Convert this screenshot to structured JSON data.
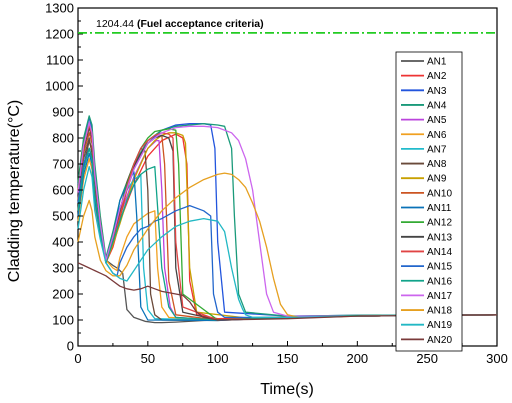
{
  "chart_data": {
    "type": "line",
    "xlabel": "Time(s)",
    "ylabel": "Cladding temperature(°C)",
    "xlim": [
      0,
      300
    ],
    "ylim": [
      0,
      1300
    ],
    "xticks": [
      "0",
      "50",
      "100",
      "150",
      "200",
      "250",
      "300"
    ],
    "yticks": [
      "0",
      "100",
      "200",
      "300",
      "400",
      "500",
      "600",
      "700",
      "800",
      "900",
      "1000",
      "1100",
      "1200",
      "1300"
    ],
    "grid": false,
    "legend_position": "right",
    "reference_line": {
      "value": 1204.44,
      "value_label": "1204.44",
      "label": "(Fuel acceptance criteria)",
      "color": "#22cc22",
      "style": "dash-dot"
    },
    "series": [
      {
        "name": "AN1",
        "color": "#555555",
        "x": [
          0,
          4,
          8,
          10,
          12,
          16,
          20,
          25,
          28,
          32,
          35,
          40,
          48,
          55,
          60,
          70,
          90,
          120,
          160,
          200,
          250,
          300
        ],
        "y": [
          560,
          720,
          800,
          740,
          600,
          430,
          330,
          310,
          300,
          280,
          140,
          110,
          95,
          90,
          90,
          92,
          98,
          105,
          112,
          115,
          118,
          120
        ]
      },
      {
        "name": "AN2",
        "color": "#ee3333",
        "x": [
          0,
          4,
          8,
          10,
          12,
          16,
          20,
          25,
          30,
          40,
          50,
          60,
          70,
          75,
          78,
          80,
          85,
          100,
          150,
          200,
          300
        ],
        "y": [
          600,
          760,
          840,
          800,
          640,
          470,
          320,
          380,
          480,
          620,
          730,
          790,
          815,
          800,
          700,
          250,
          120,
          105,
          110,
          115,
          120
        ]
      },
      {
        "name": "AN3",
        "color": "#2255dd",
        "x": [
          0,
          4,
          8,
          10,
          12,
          16,
          20,
          25,
          30,
          40,
          50,
          60,
          70,
          80,
          90,
          95,
          98,
          100,
          105,
          150,
          200,
          300
        ],
        "y": [
          620,
          790,
          880,
          830,
          680,
          480,
          330,
          420,
          530,
          680,
          780,
          830,
          850,
          855,
          855,
          850,
          760,
          400,
          130,
          115,
          118,
          120
        ]
      },
      {
        "name": "AN4",
        "color": "#1a9a7a",
        "x": [
          0,
          4,
          8,
          10,
          12,
          16,
          20,
          25,
          30,
          40,
          50,
          60,
          70,
          80,
          90,
          100,
          105,
          110,
          112,
          115,
          120,
          150,
          200,
          300
        ],
        "y": [
          630,
          800,
          885,
          850,
          700,
          500,
          340,
          440,
          560,
          700,
          790,
          830,
          845,
          850,
          855,
          850,
          845,
          760,
          500,
          200,
          130,
          115,
          118,
          120
        ]
      },
      {
        "name": "AN5",
        "color": "#bb44dd",
        "x": [
          0,
          4,
          8,
          10,
          12,
          16,
          20,
          25,
          30,
          40,
          50,
          56,
          58,
          60,
          62,
          66,
          70,
          100,
          150,
          200,
          300
        ],
        "y": [
          580,
          760,
          850,
          800,
          640,
          460,
          330,
          400,
          500,
          650,
          760,
          790,
          790,
          600,
          300,
          150,
          110,
          100,
          110,
          115,
          120
        ]
      },
      {
        "name": "AN6",
        "color": "#f0a020",
        "x": [
          0,
          4,
          8,
          10,
          12,
          16,
          20,
          25,
          28,
          30,
          35,
          40,
          50,
          55,
          57,
          60,
          65,
          100,
          150,
          200,
          300
        ],
        "y": [
          480,
          640,
          720,
          680,
          540,
          420,
          330,
          300,
          290,
          340,
          420,
          470,
          510,
          520,
          300,
          150,
          110,
          100,
          110,
          115,
          120
        ]
      },
      {
        "name": "AN7",
        "color": "#22bbcc",
        "x": [
          0,
          4,
          8,
          10,
          12,
          16,
          20,
          25,
          30,
          35,
          40,
          45,
          47,
          50,
          55,
          100,
          150,
          200,
          300
        ],
        "y": [
          560,
          700,
          760,
          720,
          600,
          460,
          330,
          420,
          520,
          600,
          640,
          660,
          300,
          140,
          105,
          100,
          110,
          115,
          120
        ]
      },
      {
        "name": "AN8",
        "color": "#6a4a3a",
        "x": [
          0,
          4,
          8,
          10,
          12,
          16,
          20,
          25,
          30,
          35,
          40,
          45,
          48,
          50,
          52,
          55,
          60,
          100,
          150,
          200,
          300
        ],
        "y": [
          520,
          690,
          790,
          750,
          600,
          440,
          330,
          400,
          520,
          630,
          700,
          760,
          750,
          600,
          200,
          120,
          100,
          98,
          110,
          115,
          120
        ]
      },
      {
        "name": "AN9",
        "color": "#c8a000",
        "x": [
          0,
          4,
          8,
          10,
          12,
          16,
          20,
          25,
          30,
          35,
          40,
          45,
          50,
          55,
          60,
          65,
          70,
          75,
          77,
          80,
          85,
          120,
          150,
          200,
          300
        ],
        "y": [
          600,
          770,
          850,
          810,
          650,
          470,
          320,
          390,
          470,
          560,
          640,
          700,
          760,
          790,
          810,
          820,
          820,
          810,
          780,
          300,
          130,
          108,
          112,
          115,
          120
        ]
      },
      {
        "name": "AN10",
        "color": "#cc5522",
        "x": [
          0,
          4,
          8,
          10,
          12,
          16,
          20,
          25,
          30,
          35,
          40,
          45,
          50,
          55,
          60,
          62,
          65,
          70,
          100,
          150,
          200,
          300
        ],
        "y": [
          560,
          740,
          820,
          780,
          630,
          450,
          330,
          400,
          490,
          600,
          680,
          740,
          780,
          800,
          810,
          700,
          250,
          120,
          100,
          110,
          115,
          120
        ]
      },
      {
        "name": "AN11",
        "color": "#0a72b8",
        "x": [
          0,
          4,
          8,
          10,
          12,
          16,
          20,
          25,
          28,
          30,
          35,
          40,
          42,
          45,
          50,
          100,
          150,
          200,
          300
        ],
        "y": [
          500,
          660,
          740,
          700,
          560,
          430,
          330,
          420,
          500,
          560,
          620,
          670,
          500,
          150,
          100,
          98,
          110,
          115,
          120
        ]
      },
      {
        "name": "AN12",
        "color": "#33aa33",
        "x": [
          0,
          4,
          8,
          10,
          12,
          16,
          20,
          25,
          30,
          35,
          40,
          45,
          50,
          55,
          60,
          65,
          70,
          72,
          75,
          100,
          150,
          200,
          300
        ],
        "y": [
          610,
          780,
          860,
          820,
          660,
          480,
          330,
          420,
          520,
          620,
          700,
          760,
          800,
          825,
          830,
          835,
          830,
          700,
          200,
          100,
          110,
          115,
          120
        ]
      },
      {
        "name": "AN13",
        "color": "#444444",
        "x": [
          0,
          4,
          8,
          10,
          12,
          16,
          20,
          25,
          30,
          35,
          40,
          45,
          50,
          55,
          60,
          65,
          68,
          70,
          75,
          100,
          150,
          200,
          300
        ],
        "y": [
          580,
          760,
          840,
          800,
          640,
          460,
          330,
          410,
          510,
          610,
          690,
          740,
          780,
          800,
          810,
          800,
          750,
          300,
          130,
          100,
          110,
          115,
          120
        ]
      },
      {
        "name": "AN14",
        "color": "#e04444",
        "x": [
          0,
          4,
          8,
          10,
          12,
          16,
          20,
          25,
          30,
          35,
          40,
          45,
          50,
          55,
          60,
          65,
          68,
          70,
          75,
          100,
          150,
          200,
          300
        ],
        "y": [
          590,
          770,
          850,
          810,
          650,
          470,
          330,
          400,
          500,
          610,
          700,
          760,
          790,
          810,
          820,
          815,
          800,
          400,
          150,
          100,
          110,
          115,
          120
        ]
      },
      {
        "name": "AN15",
        "color": "#2266cc",
        "x": [
          0,
          4,
          8,
          10,
          12,
          16,
          20,
          25,
          28,
          30,
          35,
          40,
          45,
          50,
          55,
          60,
          70,
          80,
          90,
          95,
          97,
          100,
          105,
          150,
          200,
          300
        ],
        "y": [
          550,
          700,
          760,
          720,
          580,
          440,
          320,
          280,
          270,
          320,
          380,
          420,
          450,
          460,
          480,
          490,
          520,
          540,
          520,
          500,
          200,
          130,
          110,
          110,
          115,
          120
        ]
      },
      {
        "name": "AN16",
        "color": "#11a38a",
        "x": [
          0,
          4,
          8,
          10,
          12,
          16,
          20,
          25,
          30,
          35,
          40,
          45,
          50,
          55,
          60,
          65,
          70,
          100,
          150,
          200,
          300
        ],
        "y": [
          520,
          680,
          760,
          720,
          580,
          440,
          320,
          400,
          480,
          560,
          620,
          660,
          680,
          690,
          300,
          150,
          110,
          100,
          110,
          115,
          120
        ]
      },
      {
        "name": "AN17",
        "color": "#cc66ee",
        "x": [
          0,
          4,
          8,
          10,
          12,
          16,
          20,
          25,
          30,
          40,
          50,
          60,
          70,
          80,
          90,
          100,
          110,
          115,
          120,
          125,
          130,
          135,
          140,
          150,
          200,
          300
        ],
        "y": [
          590,
          770,
          860,
          820,
          660,
          470,
          330,
          420,
          530,
          680,
          780,
          820,
          840,
          845,
          845,
          840,
          820,
          790,
          720,
          600,
          400,
          200,
          130,
          115,
          115,
          120
        ]
      },
      {
        "name": "AN18",
        "color": "#e6a020",
        "x": [
          0,
          4,
          8,
          10,
          12,
          16,
          20,
          25,
          30,
          35,
          40,
          50,
          60,
          70,
          80,
          90,
          100,
          105,
          110,
          115,
          120,
          125,
          130,
          135,
          140,
          145,
          150,
          160,
          200,
          300
        ],
        "y": [
          400,
          500,
          560,
          520,
          420,
          330,
          290,
          270,
          270,
          310,
          370,
          450,
          520,
          570,
          610,
          640,
          660,
          665,
          660,
          640,
          610,
          550,
          480,
          380,
          260,
          160,
          120,
          108,
          115,
          120
        ]
      },
      {
        "name": "AN19",
        "color": "#22b8c4",
        "x": [
          0,
          4,
          8,
          10,
          12,
          16,
          20,
          25,
          30,
          35,
          40,
          45,
          50,
          60,
          70,
          80,
          90,
          100,
          105,
          110,
          115,
          118,
          120,
          125,
          150,
          200,
          300
        ],
        "y": [
          450,
          600,
          690,
          650,
          520,
          410,
          320,
          280,
          260,
          250,
          290,
          330,
          370,
          420,
          460,
          480,
          490,
          480,
          440,
          300,
          180,
          140,
          120,
          110,
          110,
          115,
          120
        ]
      },
      {
        "name": "AN20",
        "color": "#7a3a3a",
        "x": [
          0,
          4,
          8,
          10,
          12,
          16,
          20,
          25,
          30,
          35,
          40,
          45,
          50,
          55,
          60,
          70,
          75,
          80,
          85,
          90,
          100,
          150,
          200,
          300
        ],
        "y": [
          320,
          310,
          300,
          295,
          290,
          280,
          270,
          250,
          230,
          220,
          215,
          220,
          230,
          220,
          210,
          200,
          195,
          170,
          130,
          110,
          100,
          105,
          115,
          120
        ]
      }
    ]
  }
}
